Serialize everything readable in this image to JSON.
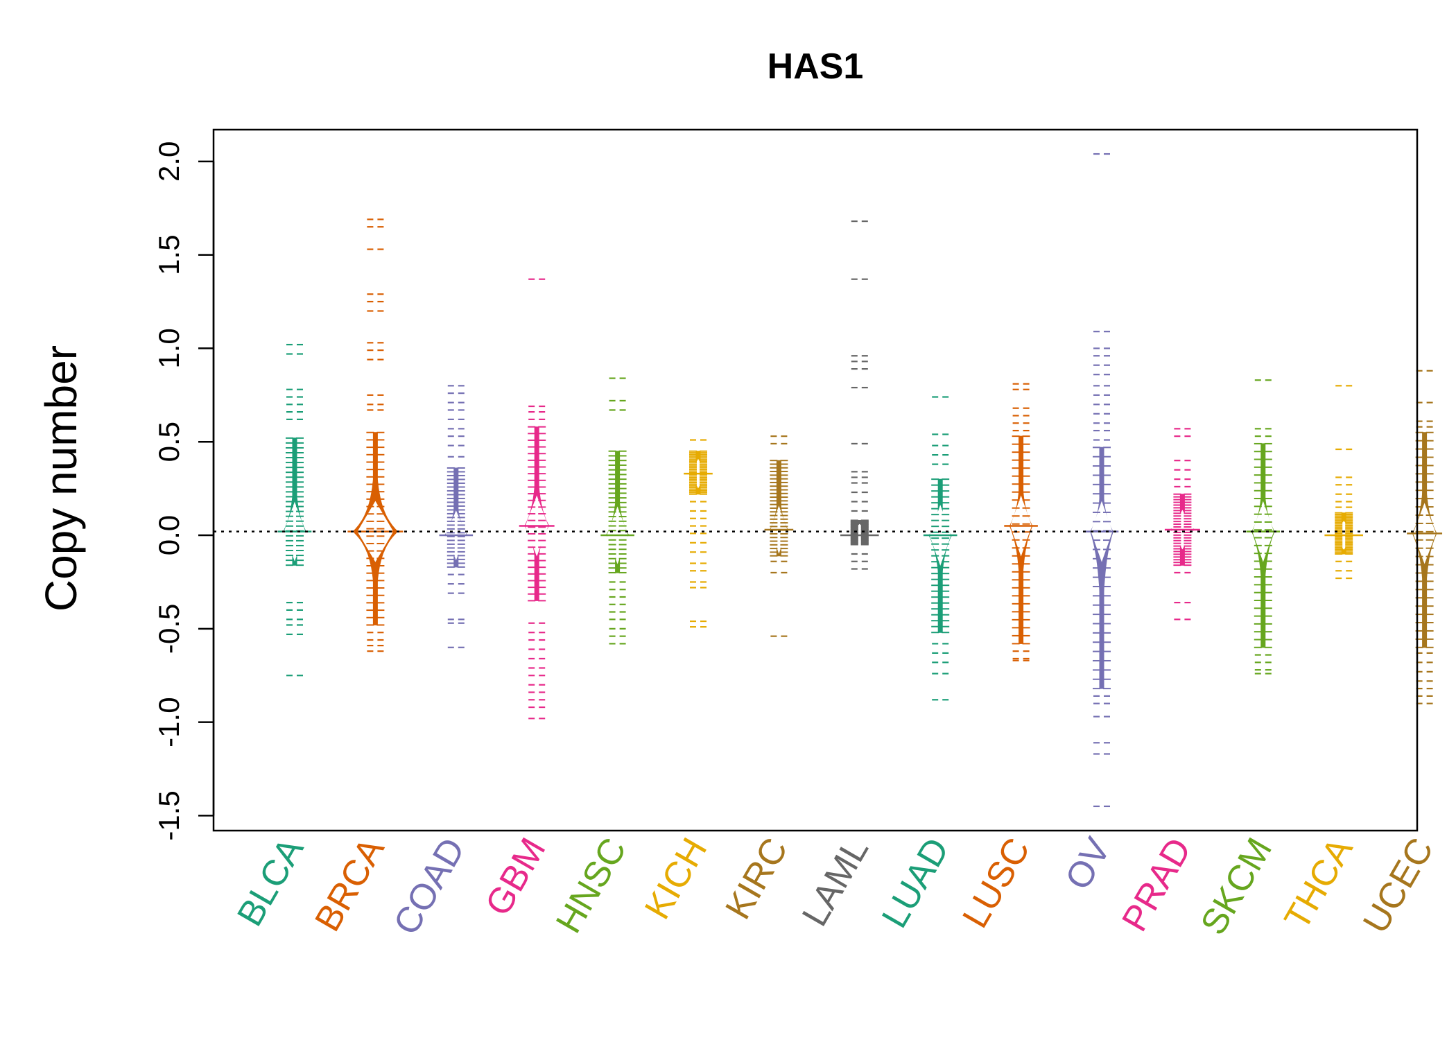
{
  "chart_data": {
    "type": "beanplot",
    "title": "HAS1",
    "xlabel": "",
    "ylabel": "Copy number",
    "ylim": [
      -1.58,
      2.17
    ],
    "yticks": [
      -1.5,
      -1.0,
      -0.5,
      0.0,
      0.5,
      1.0,
      1.5,
      2.0
    ],
    "ytick_labels": [
      "-1.5",
      "-1.0",
      "-0.5",
      "0.0",
      "0.5",
      "1.0",
      "1.5",
      "2.0"
    ],
    "reference_line": 0.02,
    "grid": false,
    "legend": "none",
    "categories": [
      "BLCA",
      "BRCA",
      "COAD",
      "GBM",
      "HNSC",
      "KICH",
      "KIRC",
      "LAML",
      "LUAD",
      "LUSC",
      "OV",
      "PRAD",
      "SKCM",
      "THCA",
      "UCEC"
    ],
    "series": [
      {
        "color": "#1B9E77",
        "median": 0.02,
        "core": [
          -0.16,
          0.52
        ],
        "width": 0.28,
        "outliers": [
          1.02,
          0.97,
          0.78,
          0.74,
          0.7,
          0.66,
          0.62,
          -0.36,
          -0.4,
          -0.45,
          -0.48,
          -0.53,
          -0.75
        ]
      },
      {
        "color": "#D95F02",
        "median": 0.02,
        "core": [
          -0.48,
          0.55
        ],
        "width": 0.55,
        "outliers": [
          1.69,
          1.65,
          1.53,
          1.29,
          1.25,
          1.2,
          1.03,
          0.99,
          0.94,
          0.75,
          0.7,
          0.67,
          -0.52,
          -0.56,
          -0.59,
          -0.62
        ]
      },
      {
        "color": "#7570B3",
        "median": 0.0,
        "core": [
          -0.17,
          0.36
        ],
        "width": 0.28,
        "outliers": [
          0.8,
          0.76,
          0.71,
          0.67,
          0.62,
          0.57,
          0.53,
          0.48,
          0.42,
          -0.21,
          -0.26,
          -0.31,
          -0.45,
          -0.47,
          -0.6
        ]
      },
      {
        "color": "#E7298A",
        "median": 0.05,
        "core": [
          -0.35,
          0.58
        ],
        "width": 0.3,
        "outliers": [
          1.37,
          0.69,
          0.66,
          0.62,
          -0.47,
          -0.52,
          -0.56,
          -0.61,
          -0.66,
          -0.71,
          -0.75,
          -0.8,
          -0.84,
          -0.88,
          -0.92,
          -0.98
        ]
      },
      {
        "color": "#66A61E",
        "median": 0.0,
        "core": [
          -0.2,
          0.45
        ],
        "width": 0.28,
        "outliers": [
          0.84,
          0.72,
          0.67,
          -0.25,
          -0.29,
          -0.33,
          -0.37,
          -0.41,
          -0.45,
          -0.5,
          -0.54,
          -0.58
        ]
      },
      {
        "color": "#E6AB02",
        "median": 0.33,
        "core": [
          0.22,
          0.45
        ],
        "width": 0.22,
        "outliers": [
          0.51,
          0.18,
          0.13,
          0.09,
          0.05,
          0.01,
          -0.04,
          -0.09,
          -0.15,
          -0.19,
          -0.25,
          -0.28,
          -0.46,
          -0.49
        ]
      },
      {
        "color": "#A6761D",
        "median": 0.03,
        "core": [
          -0.11,
          0.4
        ],
        "width": 0.22,
        "outliers": [
          0.53,
          0.49,
          -0.14,
          -0.2,
          -0.54
        ]
      },
      {
        "color": "#666666",
        "median": 0.0,
        "core": [
          -0.05,
          0.08
        ],
        "width": 0.34,
        "outliers": [
          1.68,
          1.37,
          0.96,
          0.93,
          0.89,
          0.79,
          0.49,
          0.34,
          0.31,
          0.28,
          0.23,
          0.18,
          0.13,
          -0.1,
          -0.14,
          -0.18
        ]
      },
      {
        "color": "#1B9E77",
        "median": 0.0,
        "core": [
          -0.52,
          0.3
        ],
        "width": 0.28,
        "outliers": [
          0.74,
          0.54,
          0.48,
          0.43,
          0.38,
          -0.58,
          -0.63,
          -0.68,
          -0.74,
          -0.88
        ]
      },
      {
        "color": "#D95F02",
        "median": 0.05,
        "core": [
          -0.58,
          0.53
        ],
        "width": 0.28,
        "outliers": [
          0.81,
          0.78,
          0.68,
          0.64,
          0.6,
          0.56,
          -0.62,
          -0.66,
          -0.67
        ]
      },
      {
        "color": "#7570B3",
        "median": 0.02,
        "core": [
          -0.82,
          0.47
        ],
        "width": 0.28,
        "outliers": [
          2.04,
          1.09,
          1.0,
          0.96,
          0.91,
          0.86,
          0.8,
          0.75,
          0.7,
          0.65,
          0.6,
          0.56,
          0.51,
          -0.86,
          -0.9,
          -0.97,
          -1.11,
          -1.17,
          -1.45
        ]
      },
      {
        "color": "#E7298A",
        "median": 0.03,
        "core": [
          -0.16,
          0.22
        ],
        "width": 0.3,
        "outliers": [
          0.57,
          0.53,
          0.4,
          0.35,
          0.3,
          0.26,
          -0.2,
          -0.36,
          -0.45
        ]
      },
      {
        "color": "#66A61E",
        "median": 0.02,
        "core": [
          -0.6,
          0.49
        ],
        "width": 0.28,
        "outliers": [
          0.83,
          0.57,
          0.53,
          -0.64,
          -0.68,
          -0.72,
          -0.74
        ]
      },
      {
        "color": "#E6AB02",
        "median": 0.0,
        "core": [
          -0.1,
          0.12
        ],
        "width": 0.34,
        "outliers": [
          0.8,
          0.46,
          0.31,
          0.27,
          0.22,
          0.18,
          0.15,
          -0.14,
          -0.19,
          -0.23
        ]
      },
      {
        "color": "#A6761D",
        "median": 0.01,
        "core": [
          -0.6,
          0.55
        ],
        "width": 0.3,
        "outliers": [
          0.88,
          0.71,
          0.61,
          0.58,
          -0.63,
          -0.68,
          -0.73,
          -0.78,
          -0.82,
          -0.86,
          -0.9
        ]
      }
    ]
  }
}
